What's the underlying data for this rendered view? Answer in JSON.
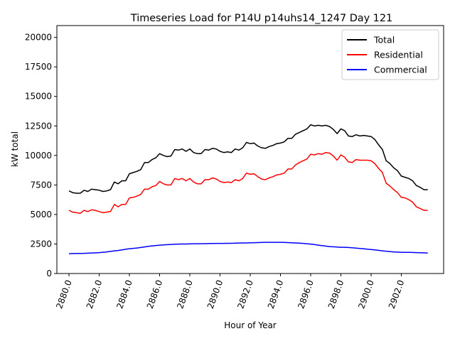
{
  "chart_data": {
    "type": "line",
    "title": "Timeseries Load for P14U p14uhs14_1247  Day 121",
    "xlabel": "Hour of Year",
    "ylabel": "kW total",
    "xlim": [
      2879.2,
      2904.8
    ],
    "ylim": [
      0,
      21000
    ],
    "x_ticks": [
      2880,
      2882,
      2884,
      2886,
      2888,
      2890,
      2892,
      2894,
      2896,
      2898,
      2900,
      2902
    ],
    "x_tick_labels": [
      "2880.0",
      "2882.0",
      "2884.0",
      "2886.0",
      "2888.0",
      "2890.0",
      "2892.0",
      "2894.0",
      "2896.0",
      "2898.0",
      "2900.0",
      "2902.0"
    ],
    "y_ticks": [
      0,
      2500,
      5000,
      7500,
      10000,
      12500,
      15000,
      17500,
      20000
    ],
    "y_tick_labels": [
      "0",
      "2500",
      "5000",
      "7500",
      "10000",
      "12500",
      "15000",
      "17500",
      "20000"
    ],
    "legend_position": "top-right",
    "grid": false,
    "x_start": 2880,
    "x_step": 0.25,
    "series": [
      {
        "name": "Total",
        "color": "#000000",
        "values": [
          7000,
          6850,
          6800,
          6800,
          7050,
          6950,
          7150,
          7100,
          7050,
          6950,
          7000,
          7100,
          7750,
          7600,
          7850,
          7850,
          8450,
          8550,
          8650,
          8800,
          9400,
          9400,
          9650,
          9800,
          10150,
          10000,
          9900,
          9950,
          10500,
          10450,
          10550,
          10350,
          10550,
          10250,
          10150,
          10150,
          10500,
          10450,
          10600,
          10550,
          10350,
          10250,
          10300,
          10250,
          10550,
          10450,
          10650,
          11100,
          11000,
          11050,
          10800,
          10650,
          10600,
          10750,
          10850,
          11000,
          11050,
          11150,
          11450,
          11450,
          11800,
          11950,
          12100,
          12250,
          12600,
          12500,
          12550,
          12500,
          12550,
          12450,
          12200,
          11850,
          12250,
          12100,
          11650,
          11600,
          11750,
          11650,
          11700,
          11650,
          11600,
          11350,
          10900,
          10500,
          9550,
          9300,
          8950,
          8700,
          8250,
          8150,
          8050,
          7850,
          7450,
          7300,
          7100,
          7100
        ]
      },
      {
        "name": "Residential",
        "color": "#ff0000",
        "values": [
          5350,
          5200,
          5150,
          5100,
          5350,
          5250,
          5400,
          5350,
          5250,
          5150,
          5200,
          5250,
          5850,
          5650,
          5850,
          5850,
          6400,
          6450,
          6550,
          6700,
          7150,
          7150,
          7350,
          7450,
          7800,
          7600,
          7500,
          7500,
          8050,
          7950,
          8050,
          7850,
          8050,
          7750,
          7600,
          7600,
          7950,
          7950,
          8100,
          8000,
          7800,
          7700,
          7750,
          7700,
          7950,
          7850,
          8050,
          8500,
          8400,
          8450,
          8200,
          8000,
          7950,
          8100,
          8200,
          8350,
          8400,
          8500,
          8850,
          8850,
          9200,
          9400,
          9550,
          9700,
          10100,
          10050,
          10150,
          10100,
          10250,
          10200,
          9950,
          9600,
          10050,
          9850,
          9450,
          9400,
          9650,
          9600,
          9600,
          9600,
          9550,
          9300,
          8900,
          8550,
          7650,
          7400,
          7100,
          6850,
          6450,
          6400,
          6250,
          6050,
          5650,
          5500,
          5350,
          5350
        ]
      },
      {
        "name": "Commercial",
        "color": "#0000ff",
        "values": [
          1680,
          1690,
          1700,
          1700,
          1710,
          1720,
          1740,
          1750,
          1770,
          1800,
          1830,
          1870,
          1920,
          1950,
          2000,
          2050,
          2100,
          2130,
          2160,
          2200,
          2250,
          2300,
          2340,
          2370,
          2400,
          2420,
          2440,
          2460,
          2480,
          2490,
          2500,
          2500,
          2510,
          2520,
          2520,
          2530,
          2530,
          2540,
          2540,
          2550,
          2550,
          2550,
          2560,
          2560,
          2570,
          2580,
          2590,
          2590,
          2600,
          2610,
          2620,
          2630,
          2640,
          2640,
          2640,
          2640,
          2640,
          2630,
          2620,
          2600,
          2590,
          2570,
          2550,
          2520,
          2490,
          2450,
          2400,
          2360,
          2320,
          2280,
          2260,
          2240,
          2220,
          2220,
          2200,
          2180,
          2150,
          2120,
          2100,
          2060,
          2030,
          2000,
          1960,
          1920,
          1890,
          1860,
          1830,
          1810,
          1800,
          1790,
          1790,
          1780,
          1770,
          1760,
          1750,
          1730
        ]
      }
    ]
  }
}
